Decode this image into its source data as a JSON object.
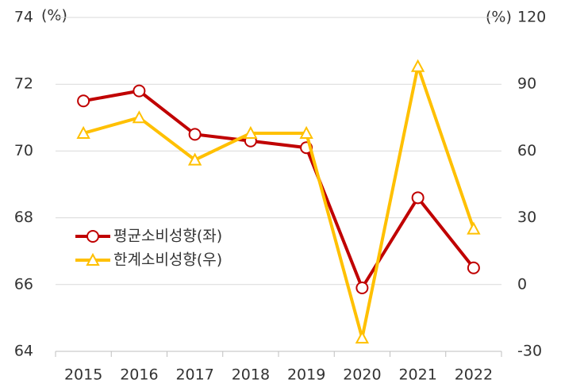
{
  "chart_data": {
    "type": "line",
    "y_unit_label": "(%)",
    "y2_unit_label": "(%)",
    "categories": [
      "2015",
      "2016",
      "2017",
      "2018",
      "2019",
      "2020",
      "2021",
      "2022"
    ],
    "series": [
      {
        "name": "평균소비성향(좌)",
        "color": "#c00000",
        "marker": "circle",
        "axis": "y",
        "values": [
          71.5,
          71.8,
          70.5,
          70.3,
          70.1,
          65.9,
          68.6,
          66.5
        ]
      },
      {
        "name": "한계소비성향(우)",
        "color": "#ffc000",
        "marker": "triangle",
        "axis": "y2",
        "values": [
          68,
          75,
          56,
          68,
          68,
          -24,
          98,
          25
        ]
      }
    ],
    "ylim": [
      64,
      74
    ],
    "yticks": [
      64,
      66,
      68,
      70,
      72,
      74
    ],
    "y2lim": [
      -30,
      120
    ],
    "y2ticks": [
      -30,
      0,
      30,
      60,
      90,
      120
    ],
    "grid": true,
    "legend": "left"
  }
}
